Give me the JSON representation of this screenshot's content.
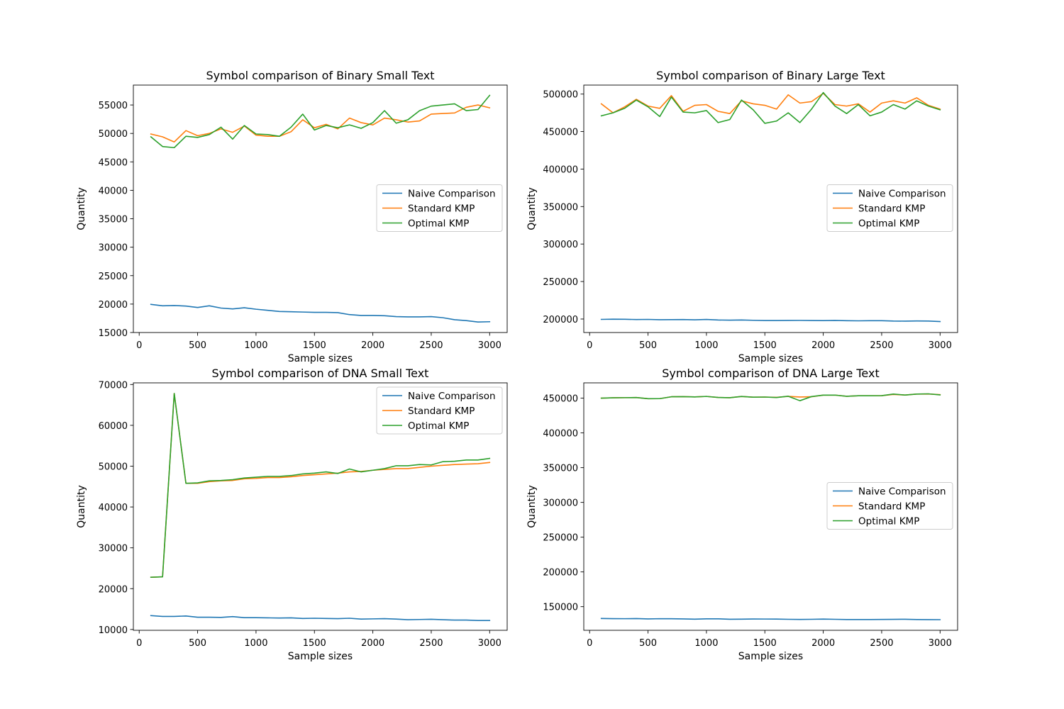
{
  "colors": {
    "naive": "#1f77b4",
    "standard": "#ff7f0e",
    "optimal": "#2ca02c"
  },
  "chart_data": [
    {
      "type": "line",
      "title": "Symbol comparison of Binary Small Text",
      "xlabel": "Sample sizes",
      "ylabel": "Quantity",
      "xlim": [
        -50,
        3150
      ],
      "ylim": [
        15000,
        58500
      ],
      "xticks": [
        0,
        500,
        1000,
        1500,
        2000,
        2500,
        3000
      ],
      "yticks": [
        15000,
        20000,
        25000,
        30000,
        35000,
        40000,
        45000,
        50000,
        55000
      ],
      "legend": "center-right",
      "x": [
        100,
        200,
        300,
        400,
        500,
        600,
        700,
        800,
        900,
        1000,
        1100,
        1200,
        1300,
        1400,
        1500,
        1600,
        1700,
        1800,
        1900,
        2000,
        2100,
        2200,
        2300,
        2400,
        2500,
        2600,
        2700,
        2800,
        2900,
        3000
      ],
      "series": [
        {
          "name": "Naive Comparison",
          "color": "#1f77b4",
          "values": [
            19950,
            19700,
            19750,
            19650,
            19400,
            19700,
            19300,
            19150,
            19350,
            19100,
            18900,
            18700,
            18650,
            18600,
            18550,
            18550,
            18500,
            18150,
            18000,
            18000,
            17950,
            17800,
            17750,
            17750,
            17800,
            17600,
            17250,
            17100,
            16850,
            16900
          ]
        },
        {
          "name": "Standard KMP",
          "color": "#ff7f0e",
          "values": [
            49900,
            49400,
            48500,
            50500,
            49600,
            50000,
            50800,
            50200,
            51300,
            49700,
            49500,
            49500,
            50300,
            52400,
            51000,
            51600,
            50800,
            52700,
            51900,
            51500,
            52700,
            52400,
            52000,
            52200,
            53400,
            53500,
            53600,
            54600,
            55000,
            54500
          ]
        },
        {
          "name": "Optimal KMP",
          "color": "#2ca02c",
          "values": [
            49400,
            47700,
            47500,
            49500,
            49300,
            49800,
            51100,
            49000,
            51400,
            49900,
            49800,
            49500,
            51100,
            53400,
            50600,
            51400,
            51000,
            51500,
            50900,
            51900,
            54000,
            51800,
            52400,
            54000,
            54800,
            55000,
            55200,
            54000,
            54200,
            56700
          ]
        }
      ]
    },
    {
      "type": "line",
      "title": "Symbol comparison of Binary Large Text",
      "xlabel": "Sample sizes",
      "ylabel": "Quantity",
      "xlim": [
        -50,
        3150
      ],
      "ylim": [
        182000,
        512000
      ],
      "xticks": [
        0,
        500,
        1000,
        1500,
        2000,
        2500,
        3000
      ],
      "yticks": [
        200000,
        250000,
        300000,
        350000,
        400000,
        450000,
        500000
      ],
      "legend": "center-right",
      "x": [
        100,
        200,
        300,
        400,
        500,
        600,
        700,
        800,
        900,
        1000,
        1100,
        1200,
        1300,
        1400,
        1500,
        1600,
        1700,
        1800,
        1900,
        2000,
        2100,
        2200,
        2300,
        2400,
        2500,
        2600,
        2700,
        2800,
        2900,
        3000
      ],
      "series": [
        {
          "name": "Naive Comparison",
          "color": "#1f77b4",
          "values": [
            199500,
            199800,
            199700,
            199300,
            199500,
            199100,
            199200,
            199300,
            199000,
            199400,
            198700,
            198500,
            198700,
            198300,
            198000,
            198000,
            198100,
            198200,
            198000,
            197900,
            198100,
            197800,
            197600,
            197800,
            197800,
            197300,
            197200,
            197400,
            197300,
            196600
          ]
        },
        {
          "name": "Standard KMP",
          "color": "#ff7f0e",
          "values": [
            487000,
            475000,
            483000,
            493000,
            484000,
            481000,
            498000,
            477000,
            485000,
            486000,
            477000,
            474000,
            491000,
            487000,
            485000,
            480000,
            499000,
            488000,
            490000,
            501000,
            486000,
            484000,
            487000,
            476000,
            488000,
            491000,
            488000,
            495000,
            485000,
            480000
          ]
        },
        {
          "name": "Optimal KMP",
          "color": "#2ca02c",
          "values": [
            471000,
            475000,
            481000,
            492000,
            483000,
            470000,
            496000,
            476000,
            475000,
            478000,
            462000,
            466000,
            492000,
            479000,
            461000,
            464000,
            475000,
            462000,
            480000,
            502000,
            484000,
            474000,
            486000,
            471000,
            476000,
            486000,
            480000,
            491000,
            484000,
            479000
          ]
        }
      ]
    },
    {
      "type": "line",
      "title": "Symbol comparison of DNA Small Text",
      "xlabel": "Sample sizes",
      "ylabel": "Quantity",
      "xlim": [
        -50,
        3150
      ],
      "ylim": [
        9800,
        70400
      ],
      "xticks": [
        0,
        500,
        1000,
        1500,
        2000,
        2500,
        3000
      ],
      "yticks": [
        10000,
        20000,
        30000,
        40000,
        50000,
        60000,
        70000
      ],
      "legend": "top-right",
      "x": [
        100,
        200,
        300,
        400,
        500,
        600,
        700,
        800,
        900,
        1000,
        1100,
        1200,
        1300,
        1400,
        1500,
        1600,
        1700,
        1800,
        1900,
        2000,
        2100,
        2200,
        2300,
        2400,
        2500,
        2600,
        2700,
        2800,
        2900,
        3000
      ],
      "series": [
        {
          "name": "Naive Comparison",
          "color": "#1f77b4",
          "values": [
            13400,
            13200,
            13200,
            13300,
            13000,
            13000,
            12950,
            13150,
            12900,
            12900,
            12850,
            12800,
            12850,
            12700,
            12750,
            12700,
            12650,
            12750,
            12550,
            12600,
            12650,
            12550,
            12400,
            12450,
            12500,
            12400,
            12300,
            12300,
            12200,
            12200
          ]
        },
        {
          "name": "Standard KMP",
          "color": "#ff7f0e",
          "values": [
            22800,
            22900,
            67800,
            45800,
            45800,
            46200,
            46400,
            46500,
            46900,
            47000,
            47200,
            47200,
            47400,
            47700,
            47900,
            48100,
            48300,
            48600,
            48700,
            49000,
            49200,
            49400,
            49400,
            49700,
            50000,
            50200,
            50400,
            50500,
            50600,
            50900
          ]
        },
        {
          "name": "Optimal KMP",
          "color": "#2ca02c",
          "values": [
            22800,
            22900,
            67800,
            45800,
            45900,
            46400,
            46500,
            46700,
            47100,
            47300,
            47500,
            47500,
            47700,
            48100,
            48300,
            48600,
            48200,
            49300,
            48600,
            49000,
            49400,
            50100,
            50100,
            50400,
            50300,
            51100,
            51200,
            51500,
            51500,
            51900
          ]
        }
      ]
    },
    {
      "type": "line",
      "title": "Symbol comparison of DNA Large Text",
      "xlabel": "Sample sizes",
      "ylabel": "Quantity",
      "xlim": [
        -50,
        3150
      ],
      "ylim": [
        116000,
        472000
      ],
      "xticks": [
        0,
        500,
        1000,
        1500,
        2000,
        2500,
        3000
      ],
      "yticks": [
        150000,
        200000,
        250000,
        300000,
        350000,
        400000,
        450000
      ],
      "legend": "center-right",
      "x": [
        100,
        200,
        300,
        400,
        500,
        600,
        700,
        800,
        900,
        1000,
        1100,
        1200,
        1300,
        1400,
        1500,
        1600,
        1700,
        1800,
        1900,
        2000,
        2100,
        2200,
        2300,
        2400,
        2500,
        2600,
        2700,
        2800,
        2900,
        3000
      ],
      "series": [
        {
          "name": "Naive Comparison",
          "color": "#1f77b4",
          "values": [
            133000,
            132800,
            132700,
            132900,
            132400,
            132700,
            132600,
            132400,
            132000,
            132500,
            132500,
            131900,
            132000,
            132300,
            132200,
            132100,
            131800,
            131600,
            131800,
            132100,
            131800,
            131500,
            131500,
            131500,
            131600,
            131700,
            131900,
            131500,
            131400,
            131300
          ]
        },
        {
          "name": "Standard KMP",
          "color": "#ff7f0e",
          "values": [
            450000,
            450500,
            450700,
            450900,
            449200,
            449300,
            452000,
            452200,
            451800,
            452500,
            451000,
            450600,
            452400,
            451400,
            451600,
            451200,
            452600,
            451700,
            452000,
            454300,
            454400,
            452700,
            453400,
            453500,
            453600,
            455400,
            454500,
            455900,
            456000,
            455100
          ]
        },
        {
          "name": "Optimal KMP",
          "color": "#2ca02c",
          "values": [
            450000,
            450500,
            450700,
            450900,
            449200,
            449300,
            452000,
            452200,
            451800,
            452500,
            451000,
            450600,
            452400,
            451400,
            451600,
            450900,
            452800,
            446300,
            452300,
            454300,
            454400,
            452700,
            453400,
            453500,
            453600,
            455900,
            454500,
            455900,
            456200,
            454700
          ]
        }
      ]
    }
  ]
}
